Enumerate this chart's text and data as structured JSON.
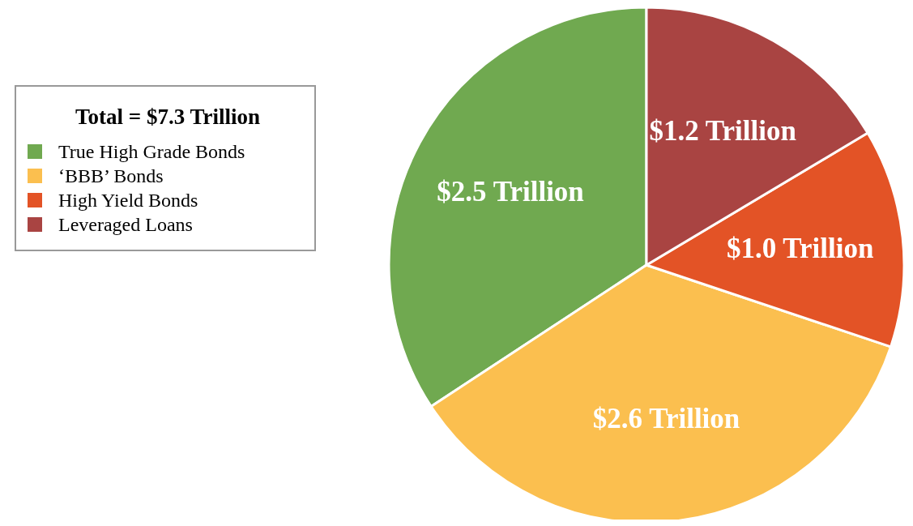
{
  "chart_data": {
    "type": "pie",
    "legend_title": "Total = $7.3 Trillion",
    "legend": "left",
    "categories": [
      "True High Grade Bonds",
      "‘BBB’ Bonds",
      "High Yield Bonds",
      "Leveraged Loans"
    ],
    "values": [
      2.5,
      2.6,
      1.0,
      1.2
    ],
    "value_labels": [
      "$2.5 Trillion",
      "$2.6 Trillion",
      "$1.0 Trillion",
      "$1.2 Trillion"
    ],
    "colors": [
      "#70a950",
      "#fbbf4f",
      "#e35326",
      "#a94442"
    ]
  }
}
